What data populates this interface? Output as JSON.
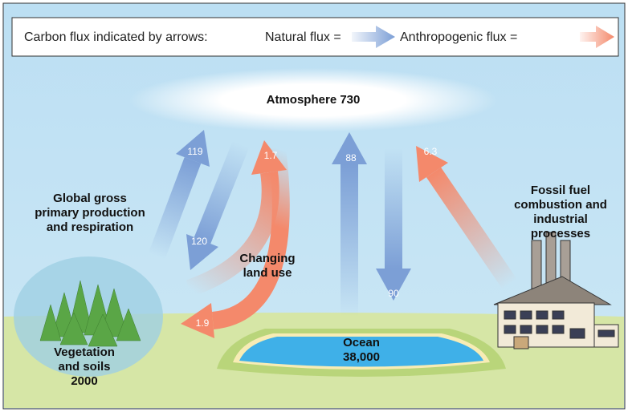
{
  "legend": {
    "intro": "Carbon flux indicated by arrows:",
    "natural": "Natural flux =",
    "anthropogenic": "Anthropogenic flux ="
  },
  "nodes": {
    "atmosphere": "Atmosphere 730",
    "production": [
      "Global gross",
      "primary production",
      "and respiration"
    ],
    "land_use": [
      "Changing",
      "land use"
    ],
    "fossil": [
      "Fossil fuel",
      "combustion and",
      "industrial",
      "processes"
    ],
    "vegetation": [
      "Vegetation",
      "and soils",
      "2000"
    ],
    "ocean": [
      "Ocean",
      "38,000"
    ]
  },
  "fluxes": {
    "photosynthesis": "119",
    "respiration": "120",
    "land_use_up": "1.7",
    "land_use_down": "1.9",
    "ocean_up": "88",
    "ocean_down": "90",
    "fossil": "6.3"
  }
}
